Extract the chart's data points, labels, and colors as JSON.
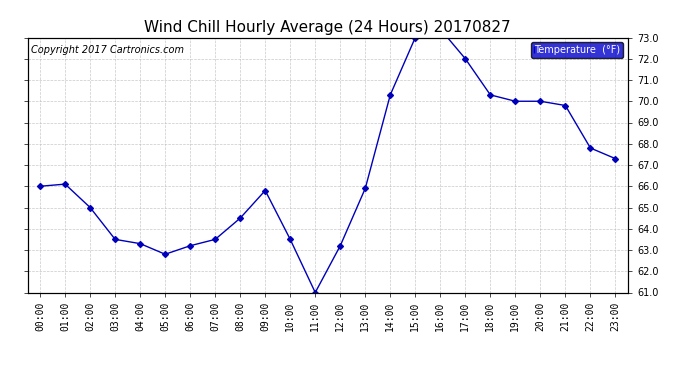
{
  "title": "Wind Chill Hourly Average (24 Hours) 20170827",
  "copyright_text": "Copyright 2017 Cartronics.com",
  "legend_label": "Temperature  (°F)",
  "hours": [
    "00:00",
    "01:00",
    "02:00",
    "03:00",
    "04:00",
    "05:00",
    "06:00",
    "07:00",
    "08:00",
    "09:00",
    "10:00",
    "11:00",
    "12:00",
    "13:00",
    "14:00",
    "15:00",
    "16:00",
    "17:00",
    "18:00",
    "19:00",
    "20:00",
    "21:00",
    "22:00",
    "23:00"
  ],
  "values": [
    66.0,
    66.1,
    65.0,
    63.5,
    63.3,
    62.8,
    63.2,
    63.5,
    64.5,
    65.8,
    63.5,
    61.0,
    63.2,
    65.9,
    70.3,
    73.0,
    73.4,
    72.0,
    70.3,
    70.0,
    70.0,
    69.8,
    67.8,
    67.3
  ],
  "ylim": [
    61.0,
    73.0
  ],
  "yticks": [
    61.0,
    62.0,
    63.0,
    64.0,
    65.0,
    66.0,
    67.0,
    68.0,
    69.0,
    70.0,
    71.0,
    72.0,
    73.0
  ],
  "line_color": "#0000BB",
  "marker_color": "#0000BB",
  "bg_color": "#FFFFFF",
  "plot_bg_color": "#FFFFFF",
  "grid_color": "#BBBBBB",
  "title_fontsize": 11,
  "copyright_fontsize": 7,
  "tick_fontsize": 7,
  "legend_bg_color": "#0000CC",
  "legend_text_color": "#FFFFFF",
  "legend_fontsize": 7
}
